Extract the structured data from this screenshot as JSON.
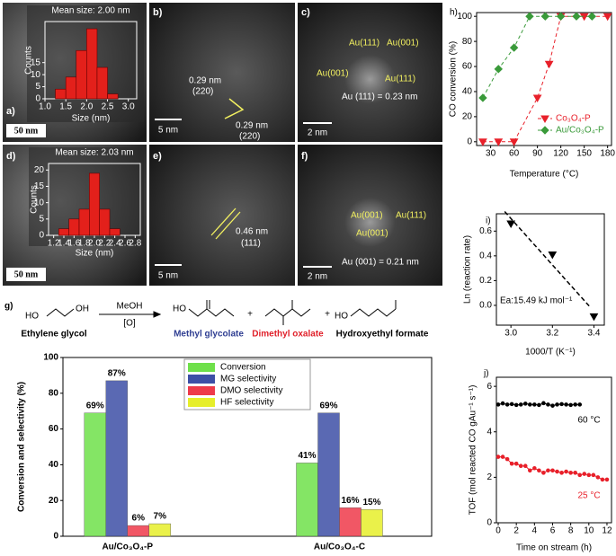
{
  "micrographs": {
    "a": {
      "label": "a)",
      "scale": "50 nm"
    },
    "b": {
      "label": "b)",
      "scale": "5 nm",
      "notes": [
        "0.29 nm",
        "(220)",
        "0.29 nm",
        "(220)"
      ]
    },
    "c": {
      "label": "c)",
      "scale": "2 nm",
      "notes": [
        "Au(111)",
        "Au(001)",
        "Au(001)",
        "Au(111)",
        "Au (111) = 0.23 nm"
      ]
    },
    "d": {
      "label": "d)",
      "scale": "50 nm"
    },
    "e": {
      "label": "e)",
      "scale": "5 nm",
      "notes": [
        "0.46 nm",
        "(111)"
      ]
    },
    "f": {
      "label": "f)",
      "scale": "2 nm",
      "notes": [
        "Au(001)",
        "Au(111)",
        "Au(001)",
        "Au (001) = 0.21 nm"
      ]
    }
  },
  "scheme": {
    "label": "g)",
    "reagent": "MeOH",
    "oxidant": "[O]",
    "reactant": "Ethylene glycol",
    "products": [
      "Methyl glycolate",
      "Dimethyl oxalate",
      "Hydroxyethyl formate"
    ],
    "plus": [
      "+",
      "+"
    ],
    "atoms": [
      "HO",
      "OH",
      "HO",
      "HO"
    ]
  },
  "chart_data": [
    {
      "type": "histogram",
      "title": "Mean size: 2.00 nm",
      "xlabel": "Size (nm)",
      "ylabel": "Counts",
      "bins": [
        1.25,
        1.5,
        1.75,
        2.0,
        2.25,
        2.5,
        2.75
      ],
      "values": [
        4,
        9,
        20,
        29,
        13,
        2
      ],
      "color": "#e3201b",
      "xlim": [
        1.0,
        3.2
      ],
      "xticks": [
        {
          "value": 1.0,
          "label": "1.0"
        },
        1.5,
        {
          "value": 2.0,
          "label": "2.0"
        },
        2.5,
        {
          "value": 3.0,
          "label": "3.0"
        }
      ],
      "ylim": [
        0,
        32
      ],
      "yticks": [
        0,
        5,
        10,
        15
      ]
    },
    {
      "type": "histogram",
      "title": "Mean size: 2.03 nm",
      "xlabel": "Size (nm)",
      "ylabel": "Counts",
      "bins": [
        1.3,
        1.5,
        1.7,
        1.9,
        2.1,
        2.3,
        2.5
      ],
      "values": [
        2,
        5,
        8,
        19,
        8,
        2
      ],
      "color": "#e3201b",
      "xlim": [
        1.1,
        2.9
      ],
      "xticks": [
        1.2,
        1.4,
        1.6,
        1.8,
        {
          "value": 2.0,
          "label": "2.0"
        },
        2.2,
        2.4,
        2.6,
        2.8
      ],
      "ylim": [
        0,
        22
      ],
      "yticks": [
        0,
        5,
        10,
        15,
        20
      ]
    },
    {
      "type": "bar",
      "ylabel": "Conversion and selectivity (%)",
      "categories": [
        "Au/Co₃O₄-P",
        "Au/Co₃O₄-C"
      ],
      "series": [
        {
          "name": "Conversion",
          "color": "#6ee04a",
          "values": [
            69,
            41
          ],
          "value_labels": [
            "69%",
            "41%"
          ]
        },
        {
          "name": "MG selectivity",
          "color": "#3d4fa6",
          "values": [
            87,
            69
          ],
          "value_labels": [
            "87%",
            "69%"
          ]
        },
        {
          "name": "DMO selectivity",
          "color": "#ee3a4a",
          "values": [
            6,
            16
          ],
          "value_labels": [
            "6%",
            "16%"
          ]
        },
        {
          "name": "HF selectivity",
          "color": "#e6ee2a",
          "values": [
            7,
            15
          ],
          "value_labels": [
            "7%",
            "15%"
          ]
        }
      ],
      "ylim": [
        0,
        100
      ],
      "yticks": [
        0,
        20,
        40,
        60,
        80,
        100
      ],
      "legend": "upper center"
    },
    {
      "type": "line",
      "panel_label": "h)",
      "xlabel": "Temperature (°C)",
      "ylabel": "CO conversion (%)",
      "series": [
        {
          "name": "Co₃O₄-P",
          "color": "#e8202a",
          "marker": "triangle-down",
          "dash": true,
          "x": [
            20,
            40,
            60,
            90,
            105,
            120,
            150,
            180
          ],
          "values": [
            0,
            0,
            0,
            35,
            62,
            100,
            100,
            100
          ]
        },
        {
          "name": "Au/Co₃O₄-P",
          "color": "#3a9a3a",
          "marker": "diamond",
          "dash": true,
          "x": [
            20,
            40,
            60,
            80,
            100,
            120,
            140,
            160
          ],
          "values": [
            35,
            58,
            75,
            100,
            100,
            100,
            100,
            100
          ]
        }
      ],
      "xlim": [
        12,
        185
      ],
      "xticks": [
        30,
        60,
        90,
        120,
        150,
        180
      ],
      "ylim": [
        -3,
        103
      ],
      "yticks": [
        0,
        20,
        40,
        60,
        80,
        100
      ],
      "legend": "lower right"
    },
    {
      "type": "scatter",
      "panel_label": "i)",
      "xlabel": "1000/T (K⁻¹)",
      "ylabel": "Ln (reaction rate)",
      "annotation": "Ea:15.49 kJ mol⁻¹",
      "x": [
        3.0,
        3.2,
        3.4
      ],
      "values": [
        0.66,
        0.41,
        -0.09
      ],
      "color": "#000000",
      "marker": "triangle-down",
      "fit": "dashed",
      "xlim": [
        2.93,
        3.45
      ],
      "xticks": [
        {
          "value": 3.0,
          "label": "3.0"
        },
        3.2,
        3.4
      ],
      "ylim": [
        -0.16,
        0.74
      ],
      "yticks": [
        {
          "value": 0,
          "label": "0.0"
        },
        0.2,
        0.4,
        0.6
      ]
    },
    {
      "type": "line",
      "panel_label": "j)",
      "xlabel": "Time on stream (h)",
      "ylabel": "TOF (mol reacted CO gAu⁻¹ s⁻¹)",
      "series": [
        {
          "name": "60 °C",
          "color": "#000000",
          "marker": "circle",
          "x": [
            0,
            0.5,
            1,
            1.5,
            2,
            2.5,
            3,
            3.5,
            4,
            4.5,
            5,
            5.5,
            6,
            6.5,
            7,
            7.5,
            8,
            8.5,
            9
          ],
          "values": [
            5.2,
            5.25,
            5.2,
            5.22,
            5.18,
            5.2,
            5.24,
            5.2,
            5.2,
            5.18,
            5.26,
            5.2,
            5.15,
            5.2,
            5.22,
            5.2,
            5.18,
            5.2,
            5.2
          ]
        },
        {
          "name": "25 °C",
          "color": "#e8202a",
          "marker": "circle",
          "x": [
            0,
            0.5,
            1,
            1.5,
            2,
            2.5,
            3,
            3.5,
            4,
            4.5,
            5,
            5.5,
            6,
            6.5,
            7,
            7.5,
            8,
            8.5,
            9,
            9.5,
            10,
            10.5,
            11,
            11.5,
            12
          ],
          "values": [
            2.9,
            2.9,
            2.8,
            2.6,
            2.6,
            2.5,
            2.5,
            2.3,
            2.4,
            2.3,
            2.2,
            2.3,
            2.3,
            2.25,
            2.2,
            2.25,
            2.2,
            2.2,
            2.1,
            2.15,
            2.1,
            2.1,
            2.0,
            1.9,
            1.9
          ]
        }
      ],
      "xlim": [
        -0.2,
        12.5
      ],
      "xticks": [
        0,
        2,
        4,
        6,
        8,
        10,
        12
      ],
      "ylim": [
        0,
        6.4
      ],
      "yticks": [
        0,
        2,
        4,
        6
      ]
    }
  ]
}
